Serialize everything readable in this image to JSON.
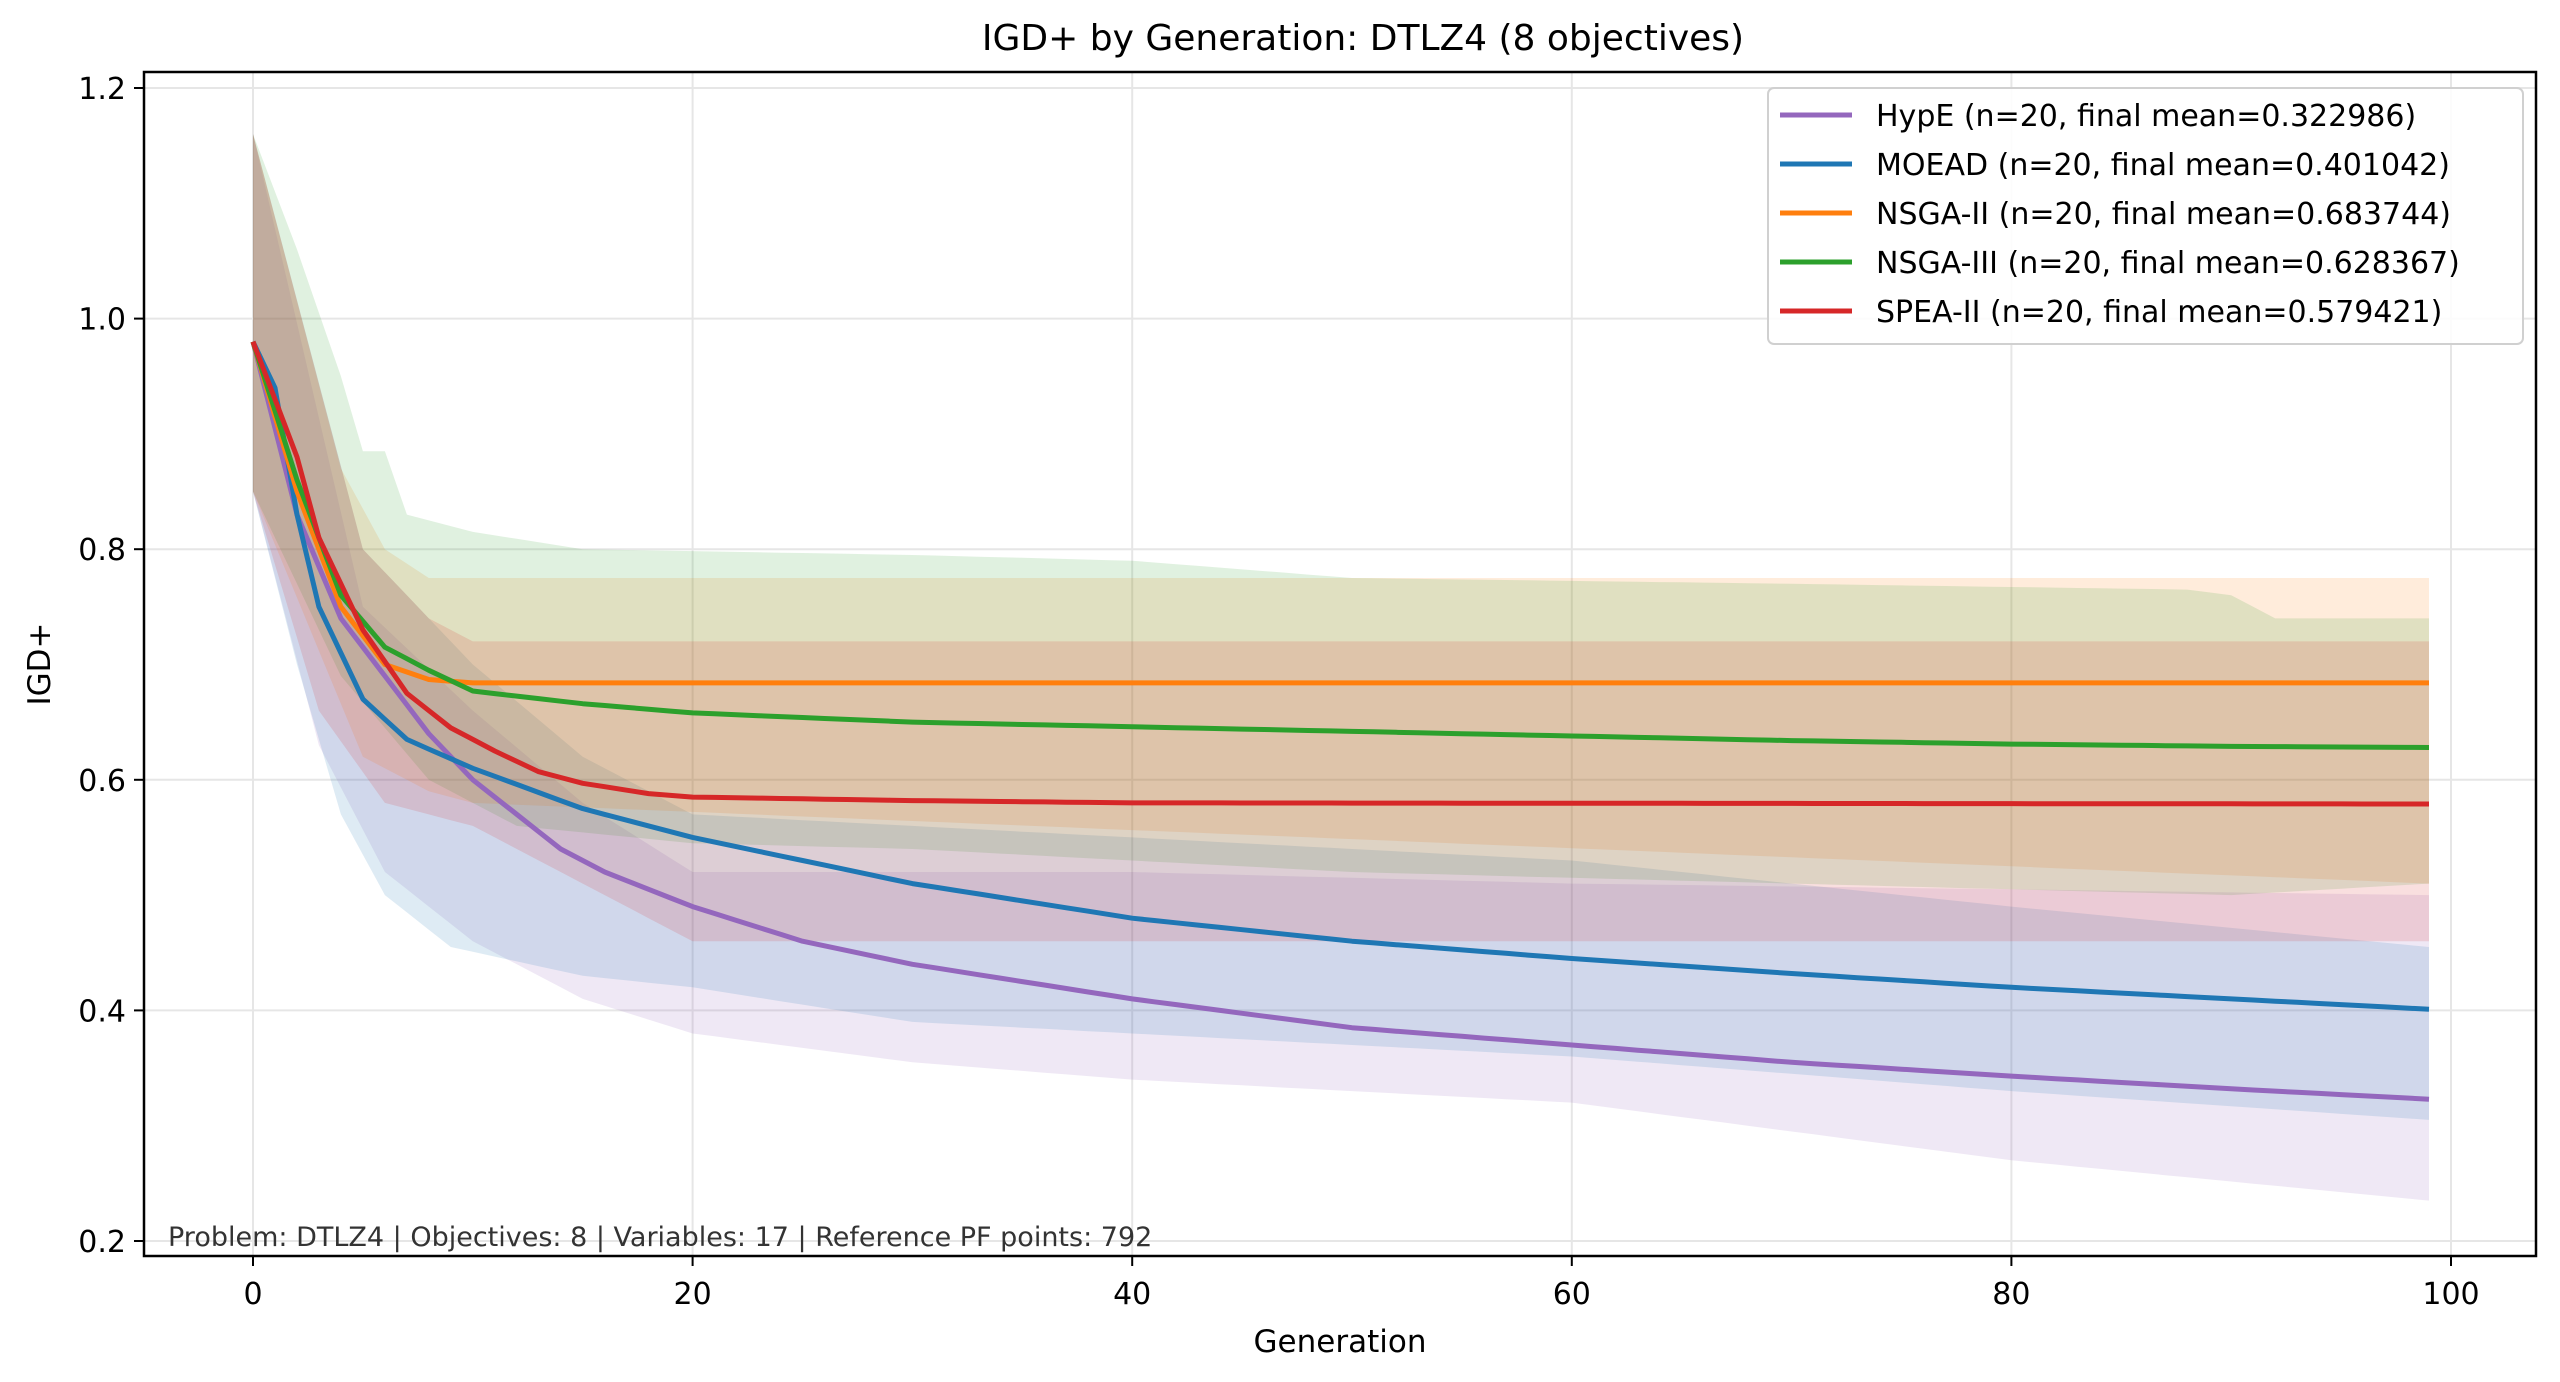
{
  "chart_data": {
    "type": "line",
    "title": "IGD+ by Generation: DTLZ4 (8 objectives)",
    "xlabel": "Generation",
    "ylabel": "IGD+",
    "xlim": [
      -5,
      104
    ],
    "ylim": [
      0.19,
      1.22
    ],
    "xticks": [
      0,
      20,
      40,
      60,
      80,
      100
    ],
    "xtick_labels": [
      "0",
      "20",
      "40",
      "60",
      "80",
      "100"
    ],
    "yticks": [
      0.2,
      0.4,
      0.6,
      0.8,
      1.0,
      1.2
    ],
    "ytick_labels": [
      "0.2",
      "0.4",
      "0.6",
      "0.8",
      "1.0",
      "1.2"
    ],
    "grid": true,
    "legend_position": "top-right",
    "annotation": "Problem: DTLZ4 | Objectives: 8 | Variables: 17 | Reference PF points: 792",
    "series": [
      {
        "name": "HypE",
        "legend_label": "HypE (n=20, final mean=0.322986)",
        "color": "#9467bd",
        "mean": [
          [
            0,
            0.98
          ],
          [
            2,
            0.83
          ],
          [
            4,
            0.74
          ],
          [
            6,
            0.69
          ],
          [
            8,
            0.64
          ],
          [
            10,
            0.6
          ],
          [
            12,
            0.57
          ],
          [
            14,
            0.54
          ],
          [
            16,
            0.52
          ],
          [
            20,
            0.49
          ],
          [
            25,
            0.46
          ],
          [
            30,
            0.44
          ],
          [
            40,
            0.41
          ],
          [
            50,
            0.385
          ],
          [
            60,
            0.37
          ],
          [
            70,
            0.355
          ],
          [
            80,
            0.343
          ],
          [
            90,
            0.332
          ],
          [
            99,
            0.323
          ]
        ],
        "upper": [
          [
            0,
            1.16
          ],
          [
            5,
            0.75
          ],
          [
            10,
            0.66
          ],
          [
            15,
            0.58
          ],
          [
            20,
            0.52
          ],
          [
            40,
            0.52
          ],
          [
            60,
            0.51
          ],
          [
            80,
            0.505
          ],
          [
            99,
            0.5
          ]
        ],
        "lower": [
          [
            0,
            0.85
          ],
          [
            3,
            0.63
          ],
          [
            6,
            0.52
          ],
          [
            10,
            0.46
          ],
          [
            15,
            0.41
          ],
          [
            20,
            0.38
          ],
          [
            30,
            0.355
          ],
          [
            40,
            0.34
          ],
          [
            60,
            0.32
          ],
          [
            80,
            0.27
          ],
          [
            99,
            0.235
          ]
        ]
      },
      {
        "name": "MOEAD",
        "legend_label": "MOEAD (n=20, final mean=0.401042)",
        "color": "#1f77b4",
        "mean": [
          [
            0,
            0.98
          ],
          [
            1,
            0.94
          ],
          [
            2,
            0.83
          ],
          [
            3,
            0.75
          ],
          [
            5,
            0.67
          ],
          [
            7,
            0.635
          ],
          [
            10,
            0.61
          ],
          [
            15,
            0.575
          ],
          [
            20,
            0.55
          ],
          [
            25,
            0.53
          ],
          [
            30,
            0.51
          ],
          [
            40,
            0.48
          ],
          [
            50,
            0.46
          ],
          [
            60,
            0.445
          ],
          [
            70,
            0.432
          ],
          [
            80,
            0.42
          ],
          [
            90,
            0.41
          ],
          [
            99,
            0.401
          ]
        ],
        "upper": [
          [
            0,
            1.16
          ],
          [
            5,
            0.8
          ],
          [
            10,
            0.7
          ],
          [
            15,
            0.62
          ],
          [
            20,
            0.57
          ],
          [
            30,
            0.56
          ],
          [
            40,
            0.55
          ],
          [
            60,
            0.53
          ],
          [
            80,
            0.49
          ],
          [
            99,
            0.455
          ]
        ],
        "lower": [
          [
            0,
            0.85
          ],
          [
            2,
            0.7
          ],
          [
            4,
            0.57
          ],
          [
            6,
            0.5
          ],
          [
            9,
            0.455
          ],
          [
            15,
            0.43
          ],
          [
            20,
            0.42
          ],
          [
            30,
            0.39
          ],
          [
            40,
            0.38
          ],
          [
            60,
            0.36
          ],
          [
            80,
            0.33
          ],
          [
            99,
            0.305
          ]
        ]
      },
      {
        "name": "NSGA-II",
        "legend_label": "NSGA-II (n=20, final mean=0.683744)",
        "color": "#ff7f0e",
        "mean": [
          [
            0,
            0.98
          ],
          [
            2,
            0.85
          ],
          [
            4,
            0.75
          ],
          [
            6,
            0.7
          ],
          [
            8,
            0.687
          ],
          [
            10,
            0.684
          ],
          [
            99,
            0.684
          ]
        ],
        "upper": [
          [
            0,
            1.16
          ],
          [
            4,
            0.87
          ],
          [
            6,
            0.8
          ],
          [
            8,
            0.775
          ],
          [
            99,
            0.775
          ]
        ],
        "lower": [
          [
            0,
            0.85
          ],
          [
            5,
            0.62
          ],
          [
            8,
            0.59
          ],
          [
            10,
            0.58
          ],
          [
            99,
            0.51
          ]
        ]
      },
      {
        "name": "NSGA-III",
        "legend_label": "NSGA-III (n=20, final mean=0.628367)",
        "color": "#2ca02c",
        "mean": [
          [
            0,
            0.98
          ],
          [
            2,
            0.86
          ],
          [
            4,
            0.76
          ],
          [
            6,
            0.715
          ],
          [
            8,
            0.695
          ],
          [
            10,
            0.677
          ],
          [
            15,
            0.666
          ],
          [
            20,
            0.658
          ],
          [
            30,
            0.65
          ],
          [
            40,
            0.646
          ],
          [
            50,
            0.642
          ],
          [
            60,
            0.638
          ],
          [
            70,
            0.634
          ],
          [
            80,
            0.631
          ],
          [
            90,
            0.629
          ],
          [
            99,
            0.628
          ]
        ],
        "upper": [
          [
            0,
            1.16
          ],
          [
            2,
            1.06
          ],
          [
            4,
            0.95
          ],
          [
            5,
            0.885
          ],
          [
            6,
            0.885
          ],
          [
            7,
            0.83
          ],
          [
            10,
            0.815
          ],
          [
            15,
            0.8
          ],
          [
            30,
            0.795
          ],
          [
            40,
            0.79
          ],
          [
            50,
            0.775
          ],
          [
            70,
            0.77
          ],
          [
            88,
            0.765
          ],
          [
            90,
            0.76
          ],
          [
            92,
            0.74
          ],
          [
            99,
            0.74
          ]
        ],
        "lower": [
          [
            0,
            0.85
          ],
          [
            4,
            0.69
          ],
          [
            8,
            0.6
          ],
          [
            12,
            0.56
          ],
          [
            20,
            0.545
          ],
          [
            30,
            0.54
          ],
          [
            50,
            0.52
          ],
          [
            70,
            0.51
          ],
          [
            90,
            0.5
          ],
          [
            99,
            0.51
          ]
        ]
      },
      {
        "name": "SPEA-II",
        "legend_label": "SPEA-II (n=20, final mean=0.579421)",
        "color": "#d62728",
        "mean": [
          [
            0,
            0.98
          ],
          [
            2,
            0.88
          ],
          [
            3,
            0.81
          ],
          [
            5,
            0.73
          ],
          [
            7,
            0.675
          ],
          [
            9,
            0.645
          ],
          [
            11,
            0.625
          ],
          [
            13,
            0.607
          ],
          [
            15,
            0.597
          ],
          [
            18,
            0.588
          ],
          [
            20,
            0.585
          ],
          [
            30,
            0.582
          ],
          [
            40,
            0.58
          ],
          [
            99,
            0.579
          ]
        ],
        "upper": [
          [
            0,
            1.16
          ],
          [
            5,
            0.8
          ],
          [
            8,
            0.74
          ],
          [
            10,
            0.72
          ],
          [
            99,
            0.72
          ]
        ],
        "lower": [
          [
            0,
            0.85
          ],
          [
            3,
            0.66
          ],
          [
            6,
            0.58
          ],
          [
            10,
            0.56
          ],
          [
            20,
            0.46
          ],
          [
            99,
            0.46
          ]
        ]
      }
    ]
  }
}
